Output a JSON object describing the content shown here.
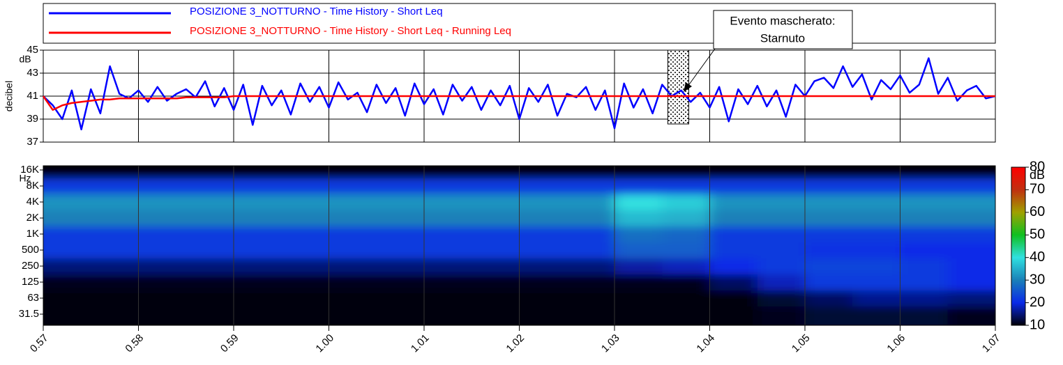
{
  "chart_data": [
    {
      "type": "line",
      "y_label": "decibel",
      "y_unit": "dB",
      "ylim": [
        37,
        45
      ],
      "yticks": [
        37,
        39,
        41,
        43,
        45
      ],
      "xlim": [
        57,
        67
      ],
      "xticks": [
        {
          "value": 57,
          "label": "0.57"
        },
        {
          "value": 58,
          "label": "0.58"
        },
        {
          "value": 59,
          "label": "0.59"
        },
        {
          "value": 60,
          "label": "1.00"
        },
        {
          "value": 61,
          "label": "1.01"
        },
        {
          "value": 62,
          "label": "1.02"
        },
        {
          "value": 63,
          "label": "1.03"
        },
        {
          "value": 64,
          "label": "1.04"
        },
        {
          "value": 65,
          "label": "1.05"
        },
        {
          "value": 66,
          "label": "1.06"
        },
        {
          "value": 67,
          "label": "1.07"
        }
      ],
      "grid": true,
      "x": [
        57.0,
        57.1,
        57.2,
        57.3,
        57.4,
        57.5,
        57.6,
        57.7,
        57.8,
        57.9,
        58.0,
        58.1,
        58.2,
        58.3,
        58.4,
        58.5,
        58.6,
        58.7,
        58.8,
        58.9,
        59.0,
        59.1,
        59.2,
        59.3,
        59.4,
        59.5,
        59.6,
        59.7,
        59.8,
        59.9,
        60.0,
        60.1,
        60.2,
        60.3,
        60.4,
        60.5,
        60.6,
        60.7,
        60.8,
        60.9,
        61.0,
        61.1,
        61.2,
        61.3,
        61.4,
        61.5,
        61.6,
        61.7,
        61.8,
        61.9,
        62.0,
        62.1,
        62.2,
        62.3,
        62.4,
        62.5,
        62.6,
        62.7,
        62.8,
        62.9,
        63.0,
        63.1,
        63.2,
        63.3,
        63.4,
        63.5,
        63.6,
        63.7,
        63.8,
        63.9,
        64.0,
        64.1,
        64.2,
        64.3,
        64.4,
        64.5,
        64.6,
        64.7,
        64.8,
        64.9,
        65.0,
        65.1,
        65.2,
        65.3,
        65.4,
        65.5,
        65.6,
        65.7,
        65.8,
        65.9,
        66.0,
        66.1,
        66.2,
        66.3,
        66.4,
        66.5,
        66.6,
        66.7,
        66.8,
        66.9,
        67.0
      ],
      "series": [
        {
          "name": "POSIZIONE 3_NOTTURNO - Time History - Short Leq",
          "color": "#0000ff",
          "values": [
            41,
            40.2,
            39.0,
            41.5,
            38.1,
            41.6,
            39.5,
            43.6,
            41.2,
            40.8,
            41.5,
            40.5,
            41.8,
            40.6,
            41.2,
            41.6,
            40.9,
            42.3,
            40.1,
            41.7,
            39.8,
            42.0,
            38.5,
            41.9,
            40.2,
            41.5,
            39.4,
            42.1,
            40.5,
            41.8,
            40.0,
            42.2,
            40.7,
            41.3,
            39.6,
            42.0,
            40.4,
            41.7,
            39.3,
            42.1,
            40.3,
            41.6,
            39.4,
            42.0,
            40.6,
            41.8,
            39.8,
            41.5,
            40.2,
            41.9,
            39.0,
            41.7,
            40.5,
            42.0,
            39.3,
            41.2,
            40.9,
            41.8,
            39.8,
            41.5,
            38.2,
            42.1,
            40.0,
            41.6,
            39.5,
            42.0,
            41.0,
            41.5,
            40.5,
            41.3,
            40.0,
            41.8,
            38.8,
            41.6,
            40.3,
            41.9,
            40.1,
            41.5,
            39.2,
            42.0,
            41.0,
            42.3,
            42.6,
            41.7,
            43.6,
            41.8,
            42.9,
            40.7,
            42.4,
            41.6,
            42.8,
            41.3,
            42.0,
            44.3,
            41.2,
            42.6,
            40.6,
            41.5,
            41.9,
            40.8,
            41.0
          ]
        },
        {
          "name": "POSIZIONE 3_NOTTURNO - Time History - Short Leq - Running Leq",
          "color": "#ff0000",
          "values": [
            41,
            39.8,
            40.2,
            40.4,
            40.5,
            40.6,
            40.7,
            40.7,
            40.8,
            40.8,
            40.8,
            40.8,
            40.8,
            40.8,
            40.8,
            40.9,
            40.9,
            40.9,
            40.9,
            40.9,
            41,
            41,
            41,
            41,
            41,
            41,
            41,
            41,
            41,
            41,
            41,
            41,
            41,
            41,
            41,
            41,
            41,
            41,
            41,
            41,
            41,
            41,
            41,
            41,
            41,
            41,
            41,
            41,
            41,
            41,
            41,
            41,
            41,
            41,
            41,
            41,
            41,
            41,
            41,
            41,
            41,
            41,
            41,
            41,
            41,
            41,
            41,
            41,
            41,
            41,
            41,
            41,
            41,
            41,
            41,
            41,
            41,
            41,
            41,
            41,
            41,
            41,
            41,
            41,
            41,
            41,
            41,
            41,
            41,
            41,
            41,
            41,
            41,
            41,
            41,
            41,
            41,
            41,
            41,
            41,
            41
          ]
        }
      ],
      "annotation": [
        "Evento mascherato:",
        "Starnuto"
      ],
      "masked_range": [
        63.56,
        63.78
      ]
    },
    {
      "type": "heatmap",
      "y_unit": "Hz",
      "categories": [
        "31.5",
        "63",
        "125",
        "250",
        "500",
        "1K",
        "2K",
        "4K",
        "8K",
        "16K"
      ],
      "x": [
        57.25,
        57.75,
        58.25,
        58.75,
        59.25,
        59.75,
        60.25,
        60.75,
        61.25,
        61.75,
        62.25,
        62.75,
        63.25,
        63.75,
        64.25,
        64.75,
        65.25,
        65.75,
        66.25,
        66.75
      ],
      "z": [
        [
          10,
          10,
          10,
          10,
          10,
          10,
          10,
          10,
          10,
          10,
          10,
          10,
          10,
          10,
          10,
          11,
          12,
          12,
          12,
          11
        ],
        [
          10,
          10,
          10,
          10,
          10,
          10,
          10,
          10,
          10,
          10,
          10,
          10,
          10,
          10,
          10,
          12,
          14,
          16,
          16,
          15
        ],
        [
          11,
          11,
          11,
          11,
          11,
          11,
          11,
          11,
          11,
          11,
          11,
          11,
          11,
          11,
          14,
          18,
          22,
          22,
          22,
          20
        ],
        [
          15,
          15,
          15,
          15,
          15,
          15,
          15,
          15,
          15,
          15,
          15,
          15,
          17,
          18,
          20,
          22,
          23,
          23,
          22,
          20
        ],
        [
          22,
          22,
          22,
          22,
          22,
          22,
          22,
          22,
          22,
          22,
          22,
          22,
          26,
          26,
          22,
          22,
          21,
          21,
          20,
          20
        ],
        [
          22,
          22,
          22,
          22,
          22,
          22,
          22,
          22,
          22,
          22,
          22,
          22,
          28,
          27,
          22,
          22,
          22,
          22,
          22,
          22
        ],
        [
          30,
          30,
          30,
          30,
          30,
          30,
          30,
          30,
          30,
          30,
          30,
          30,
          36,
          35,
          30,
          30,
          30,
          30,
          30,
          30
        ],
        [
          32,
          32,
          32,
          32,
          32,
          32,
          32,
          32,
          32,
          32,
          32,
          32,
          40,
          38,
          32,
          32,
          32,
          32,
          32,
          32
        ],
        [
          22,
          22,
          22,
          22,
          22,
          22,
          22,
          22,
          22,
          22,
          22,
          22,
          22,
          22,
          22,
          22,
          22,
          22,
          22,
          22
        ],
        [
          10,
          10,
          10,
          10,
          10,
          10,
          10,
          10,
          10,
          10,
          10,
          10,
          10,
          10,
          10,
          10,
          10,
          10,
          10,
          10
        ]
      ],
      "colorbar_unit": "dB",
      "colorbar_lim": [
        10,
        80
      ],
      "colorbar_ticks": [
        10,
        20,
        30,
        40,
        50,
        60,
        70,
        80
      ],
      "colorscale": [
        "#000008",
        "#0a2ae8",
        "#1a80b8",
        "#30e0e0",
        "#10c020",
        "#a0a000",
        "#c03010",
        "#ff0000"
      ]
    }
  ]
}
